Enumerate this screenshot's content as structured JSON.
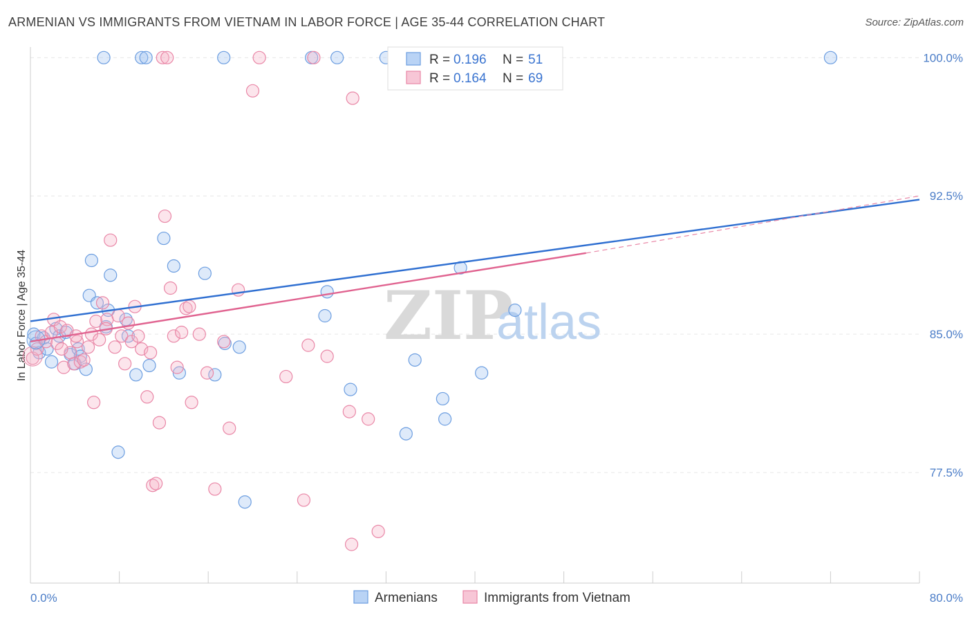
{
  "title": "ARMENIAN VS IMMIGRANTS FROM VIETNAM IN LABOR FORCE | AGE 35-44 CORRELATION CHART",
  "source": "Source: ZipAtlas.com",
  "watermark": {
    "zip": "ZIP",
    "atlas": "atlas"
  },
  "chart_data": {
    "type": "scatter",
    "ylabel": "In Labor Force | Age 35-44",
    "xlim": [
      0,
      80
    ],
    "ylim": [
      71.5,
      100.8
    ],
    "y_ticks": [
      {
        "value": 100.0,
        "label": "100.0%"
      },
      {
        "value": 92.5,
        "label": "92.5%"
      },
      {
        "value": 85.0,
        "label": "85.0%"
      },
      {
        "value": 77.5,
        "label": "77.5%"
      }
    ],
    "x_tick_labels": {
      "min": "0.0%",
      "max": "80.0%"
    },
    "legend": [
      {
        "r_label": "R =",
        "r_value": "0.196",
        "n_label": "N =",
        "n_value": "51",
        "color": "#6b9de0",
        "fill": "#b9d3f5"
      },
      {
        "r_label": "R =",
        "r_value": "0.164",
        "n_label": "N =",
        "n_value": "69",
        "color": "#e986a6",
        "fill": "#f7c6d6"
      }
    ],
    "series": [
      {
        "name": "Armenians",
        "color": "#6b9de0",
        "fill": "rgba(160,195,240,0.35)",
        "trend": {
          "x0": 0,
          "y0": 85.7,
          "x1": 80,
          "y1": 92.3,
          "dash_to": null
        },
        "points": [
          [
            0.3,
            85.0
          ],
          [
            0.5,
            84.5
          ],
          [
            0.8,
            84.0
          ],
          [
            1.2,
            84.8
          ],
          [
            1.5,
            84.2
          ],
          [
            1.9,
            83.5
          ],
          [
            2.3,
            85.3
          ],
          [
            2.6,
            84.9
          ],
          [
            3.2,
            85.1
          ],
          [
            3.6,
            83.9
          ],
          [
            4.0,
            83.4
          ],
          [
            4.3,
            84.2
          ],
          [
            4.5,
            83.8
          ],
          [
            5.0,
            83.1
          ],
          [
            5.3,
            87.1
          ],
          [
            5.5,
            89.0
          ],
          [
            6.0,
            86.7
          ],
          [
            6.6,
            100.0
          ],
          [
            6.8,
            85.4
          ],
          [
            7.0,
            86.3
          ],
          [
            7.2,
            88.2
          ],
          [
            7.9,
            78.6
          ],
          [
            8.6,
            85.8
          ],
          [
            8.8,
            84.9
          ],
          [
            9.5,
            82.8
          ],
          [
            10.0,
            100.0
          ],
          [
            10.4,
            100.0
          ],
          [
            10.7,
            83.3
          ],
          [
            12.0,
            90.2
          ],
          [
            12.9,
            88.7
          ],
          [
            13.4,
            82.9
          ],
          [
            15.7,
            88.3
          ],
          [
            16.6,
            82.8
          ],
          [
            17.4,
            100.0
          ],
          [
            17.5,
            84.5
          ],
          [
            18.8,
            84.3
          ],
          [
            19.3,
            75.9
          ],
          [
            25.3,
            100.0
          ],
          [
            26.5,
            86.0
          ],
          [
            26.7,
            87.3
          ],
          [
            27.6,
            100.0
          ],
          [
            28.8,
            82.0
          ],
          [
            32.0,
            100.0
          ],
          [
            33.8,
            79.6
          ],
          [
            34.6,
            83.6
          ],
          [
            37.1,
            81.5
          ],
          [
            37.3,
            80.4
          ],
          [
            38.7,
            88.6
          ],
          [
            40.6,
            82.9
          ],
          [
            43.6,
            86.3
          ],
          [
            72.0,
            100.0
          ]
        ]
      },
      {
        "name": "Immigrants from Vietnam",
        "color": "#e986a6",
        "fill": "rgba(245,180,200,0.35)",
        "trend": {
          "x0": 0,
          "y0": 84.6,
          "x1": 50,
          "y1": 89.4,
          "dash_to": {
            "x": 80,
            "y": 92.5
          }
        },
        "points": [
          [
            0.2,
            83.7
          ],
          [
            0.6,
            84.2
          ],
          [
            1.0,
            84.9
          ],
          [
            1.4,
            84.6
          ],
          [
            1.9,
            85.1
          ],
          [
            2.1,
            85.8
          ],
          [
            2.4,
            84.5
          ],
          [
            2.7,
            85.4
          ],
          [
            3.0,
            83.2
          ],
          [
            3.3,
            85.2
          ],
          [
            3.6,
            84.0
          ],
          [
            3.9,
            83.4
          ],
          [
            4.2,
            84.6
          ],
          [
            4.5,
            83.5
          ],
          [
            4.8,
            83.6
          ],
          [
            5.2,
            84.3
          ],
          [
            5.5,
            85.0
          ],
          [
            5.7,
            81.3
          ],
          [
            5.9,
            85.7
          ],
          [
            6.2,
            84.7
          ],
          [
            6.5,
            86.7
          ],
          [
            6.9,
            85.8
          ],
          [
            7.2,
            90.1
          ],
          [
            7.6,
            84.3
          ],
          [
            7.9,
            86.0
          ],
          [
            8.2,
            84.9
          ],
          [
            8.5,
            83.4
          ],
          [
            8.8,
            85.6
          ],
          [
            9.1,
            84.6
          ],
          [
            9.4,
            86.5
          ],
          [
            9.7,
            84.9
          ],
          [
            10.0,
            84.2
          ],
          [
            10.5,
            81.6
          ],
          [
            10.8,
            84.0
          ],
          [
            11.0,
            76.8
          ],
          [
            11.3,
            76.9
          ],
          [
            11.6,
            80.2
          ],
          [
            11.9,
            100.0
          ],
          [
            12.1,
            91.4
          ],
          [
            12.3,
            100.0
          ],
          [
            12.6,
            87.5
          ],
          [
            12.9,
            84.9
          ],
          [
            13.2,
            83.2
          ],
          [
            13.6,
            85.1
          ],
          [
            14.0,
            86.4
          ],
          [
            14.3,
            86.5
          ],
          [
            14.5,
            81.3
          ],
          [
            15.2,
            85.0
          ],
          [
            15.9,
            82.9
          ],
          [
            16.6,
            76.6
          ],
          [
            17.4,
            84.6
          ],
          [
            17.9,
            79.9
          ],
          [
            18.7,
            87.4
          ],
          [
            20.0,
            98.2
          ],
          [
            20.6,
            100.0
          ],
          [
            23.0,
            82.7
          ],
          [
            24.6,
            76.0
          ],
          [
            25.0,
            84.4
          ],
          [
            25.5,
            100.0
          ],
          [
            26.7,
            83.8
          ],
          [
            28.7,
            80.8
          ],
          [
            28.9,
            73.6
          ],
          [
            29.0,
            97.8
          ],
          [
            30.4,
            80.4
          ],
          [
            31.3,
            74.3
          ],
          [
            38.2,
            100.0
          ],
          [
            2.8,
            84.2
          ],
          [
            4.1,
            84.9
          ],
          [
            6.8,
            85.3
          ]
        ]
      }
    ]
  }
}
